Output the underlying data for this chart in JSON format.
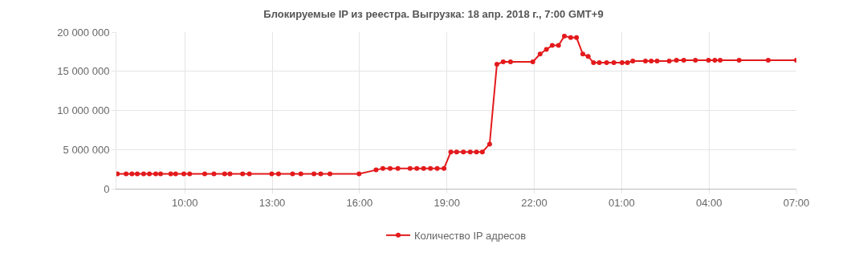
{
  "chart_data": {
    "type": "line",
    "title": "Блокируемые IP из реестра. Выгрузка: 18 апр. 2018 г., 7:00 GMT+9",
    "x": [
      "2018-04-17T07:41",
      "2018-04-17T07:59",
      "2018-04-17T08:11",
      "2018-04-17T08:22",
      "2018-04-17T08:35",
      "2018-04-17T08:47",
      "2018-04-17T09:00",
      "2018-04-17T09:10",
      "2018-04-17T09:31",
      "2018-04-17T09:41",
      "2018-04-17T09:58",
      "2018-04-17T10:10",
      "2018-04-17T10:41",
      "2018-04-17T11:00",
      "2018-04-17T11:22",
      "2018-04-17T11:33",
      "2018-04-17T11:59",
      "2018-04-17T12:13",
      "2018-04-17T12:59",
      "2018-04-17T13:13",
      "2018-04-17T13:42",
      "2018-04-17T13:59",
      "2018-04-17T14:26",
      "2018-04-17T14:40",
      "2018-04-17T14:59",
      "2018-04-17T15:59",
      "2018-04-17T16:34",
      "2018-04-17T16:48",
      "2018-04-17T17:03",
      "2018-04-17T17:19",
      "2018-04-17T17:44",
      "2018-04-17T17:58",
      "2018-04-17T18:12",
      "2018-04-17T18:26",
      "2018-04-17T18:40",
      "2018-04-17T18:54",
      "2018-04-17T19:08",
      "2018-04-17T19:20",
      "2018-04-17T19:34",
      "2018-04-17T19:48",
      "2018-04-17T20:01",
      "2018-04-17T20:13",
      "2018-04-17T20:28",
      "2018-04-17T20:43",
      "2018-04-17T20:56",
      "2018-04-17T21:11",
      "2018-04-17T21:57",
      "2018-04-17T22:12",
      "2018-04-17T22:25",
      "2018-04-17T22:37",
      "2018-04-17T22:50",
      "2018-04-17T23:02",
      "2018-04-17T23:15",
      "2018-04-17T23:27",
      "2018-04-17T23:40",
      "2018-04-17T23:51",
      "2018-04-18T00:02",
      "2018-04-18T00:14",
      "2018-04-18T00:29",
      "2018-04-18T00:44",
      "2018-04-18T01:01",
      "2018-04-18T01:12",
      "2018-04-18T01:23",
      "2018-04-18T01:49",
      "2018-04-18T02:01",
      "2018-04-18T02:13",
      "2018-04-18T02:38",
      "2018-04-18T02:53",
      "2018-04-18T03:08",
      "2018-04-18T03:32",
      "2018-04-18T03:59",
      "2018-04-18T04:12",
      "2018-04-18T04:23",
      "2018-04-18T05:02",
      "2018-04-18T06:02",
      "2018-04-18T07:00"
    ],
    "series": [
      {
        "name": "Количество IP адресов",
        "color": "#e31a1c",
        "values": [
          1900000,
          1900000,
          1900000,
          1900000,
          1900000,
          1900000,
          1900000,
          1900000,
          1900000,
          1900000,
          1900000,
          1900000,
          1900000,
          1900000,
          1900000,
          1900000,
          1900000,
          1900000,
          1900000,
          1900000,
          1900000,
          1900000,
          1900000,
          1900000,
          1900000,
          1900000,
          2400000,
          2600000,
          2600000,
          2600000,
          2600000,
          2600000,
          2600000,
          2600000,
          2600000,
          2600000,
          4700000,
          4700000,
          4700000,
          4700000,
          4700000,
          4700000,
          5700000,
          15900000,
          16200000,
          16200000,
          16200000,
          17200000,
          17800000,
          18300000,
          18300000,
          19500000,
          19300000,
          19300000,
          17200000,
          16900000,
          16100000,
          16100000,
          16100000,
          16100000,
          16100000,
          16100000,
          16300000,
          16300000,
          16300000,
          16300000,
          16300000,
          16400000,
          16400000,
          16400000,
          16400000,
          16400000,
          16400000,
          16400000,
          16400000,
          16400000
        ]
      }
    ],
    "xlim": [
      "2018-04-17T07:39",
      "2018-04-18T07:00"
    ],
    "xticks": [
      {
        "value": "2018-04-17T10:00",
        "label": "10:00"
      },
      {
        "value": "2018-04-17T13:00",
        "label": "13:00"
      },
      {
        "value": "2018-04-17T16:00",
        "label": "16:00"
      },
      {
        "value": "2018-04-17T19:00",
        "label": "19:00"
      },
      {
        "value": "2018-04-17T22:00",
        "label": "22:00"
      },
      {
        "value": "2018-04-18T01:00",
        "label": "01:00"
      },
      {
        "value": "2018-04-18T04:00",
        "label": "04:00"
      },
      {
        "value": "2018-04-18T07:00",
        "label": "07:00"
      }
    ],
    "ylim": [
      0,
      20000000
    ],
    "yticks": [
      {
        "value": 0,
        "label": "0"
      },
      {
        "value": 5000000,
        "label": "5 000 000"
      },
      {
        "value": 10000000,
        "label": "10 000 000"
      },
      {
        "value": 15000000,
        "label": "15 000 000"
      },
      {
        "value": 20000000,
        "label": "20 000 000"
      }
    ],
    "grid": true,
    "legend": "bottom",
    "marker": "circle",
    "line_style": "solid"
  }
}
